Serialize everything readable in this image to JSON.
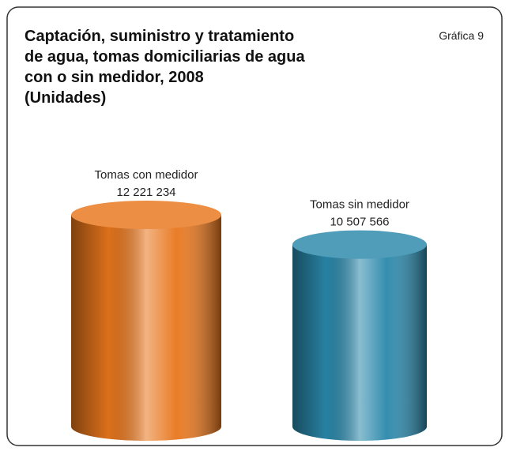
{
  "chart_data": {
    "type": "cylinder",
    "title": [
      "Captación, suministro y tratamiento",
      "de agua, tomas domiciliarias de agua",
      "con o sin medidor, 2008"
    ],
    "subtitle": "(Unidades)",
    "annotation": "Gráfica 9",
    "categories": [
      "Tomas con medidor",
      "Tomas sin medidor"
    ],
    "values": [
      12221234,
      10507566
    ],
    "value_labels": [
      "12 221 234",
      "10 507 566"
    ],
    "colors": [
      "#e8761c",
      "#2a88ab"
    ]
  }
}
